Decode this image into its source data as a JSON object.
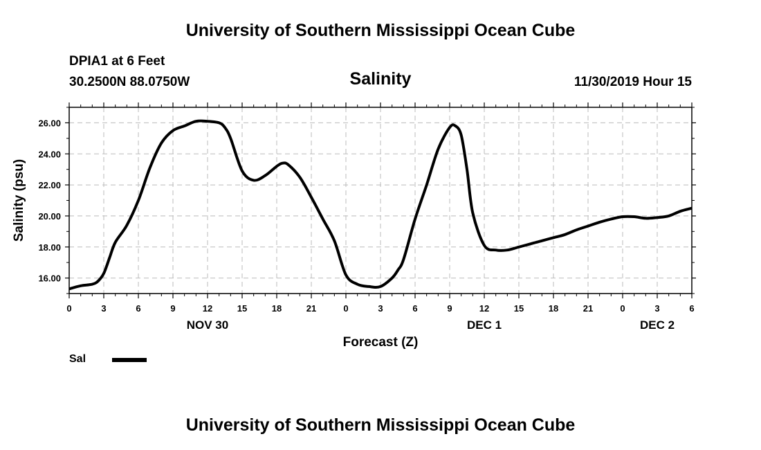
{
  "header": {
    "title": "University of Southern Mississippi Ocean Cube",
    "station": "DPIA1 at 6 Feet",
    "coordinates": "30.2500N 88.0750W",
    "timestamp": "11/30/2019 Hour 15"
  },
  "footer": {
    "title": "University of Southern Mississippi Ocean Cube"
  },
  "chart_data": {
    "type": "line",
    "title": "Salinity",
    "xlabel": "Forecast (Z)",
    "ylabel": "Salinity (psu)",
    "xlim": [
      0,
      54
    ],
    "ylim": [
      15,
      27
    ],
    "grid": true,
    "x_tick_labels": [
      "0",
      "3",
      "6",
      "9",
      "12",
      "15",
      "18",
      "21",
      "0",
      "3",
      "6",
      "9",
      "12",
      "15",
      "18",
      "21",
      "0",
      "3",
      "6"
    ],
    "y_tick_values": [
      16,
      18,
      20,
      22,
      24,
      26
    ],
    "y_tick_labels": [
      "16.00",
      "18.00",
      "20.00",
      "22.00",
      "24.00",
      "26.00"
    ],
    "date_labels": [
      {
        "label": "NOV 30",
        "hour": 12
      },
      {
        "label": "DEC 1",
        "hour": 36
      },
      {
        "label": "DEC 2",
        "hour": 51
      }
    ],
    "legend": {
      "position": "bottom-left",
      "entries": [
        {
          "name": "Sal",
          "color": "#000000"
        }
      ]
    },
    "series": [
      {
        "name": "Sal",
        "color": "#000000",
        "x": [
          0,
          1,
          2,
          2.5,
          3,
          3.5,
          4,
          5,
          6,
          7,
          8,
          9,
          10,
          11,
          12,
          13,
          13.5,
          14,
          15,
          16,
          17,
          18,
          18.5,
          19,
          20,
          21,
          22,
          23,
          24,
          25,
          26,
          27,
          28,
          28.5,
          29,
          30,
          31,
          32,
          33,
          33.5,
          34,
          34.5,
          35,
          36,
          37,
          38,
          39,
          40,
          40.5,
          41,
          42,
          43,
          44,
          45,
          46,
          47,
          48,
          49,
          50,
          51,
          52,
          53,
          54
        ],
        "y": [
          15.3,
          15.5,
          15.6,
          15.8,
          16.3,
          17.3,
          18.3,
          19.4,
          21.0,
          23.1,
          24.7,
          25.5,
          25.8,
          26.1,
          26.1,
          26.0,
          25.7,
          25.0,
          22.9,
          22.3,
          22.6,
          23.2,
          23.4,
          23.3,
          22.5,
          21.2,
          19.8,
          18.4,
          16.2,
          15.6,
          15.45,
          15.45,
          16.0,
          16.5,
          17.2,
          19.8,
          22.0,
          24.3,
          25.7,
          25.8,
          25.2,
          23.0,
          20.2,
          18.1,
          17.8,
          17.8,
          18.0,
          18.2,
          18.3,
          18.4,
          18.6,
          18.8,
          19.1,
          19.35,
          19.6,
          19.8,
          19.95,
          19.95,
          19.85,
          19.9,
          20.0,
          20.3,
          20.5
        ]
      }
    ]
  }
}
